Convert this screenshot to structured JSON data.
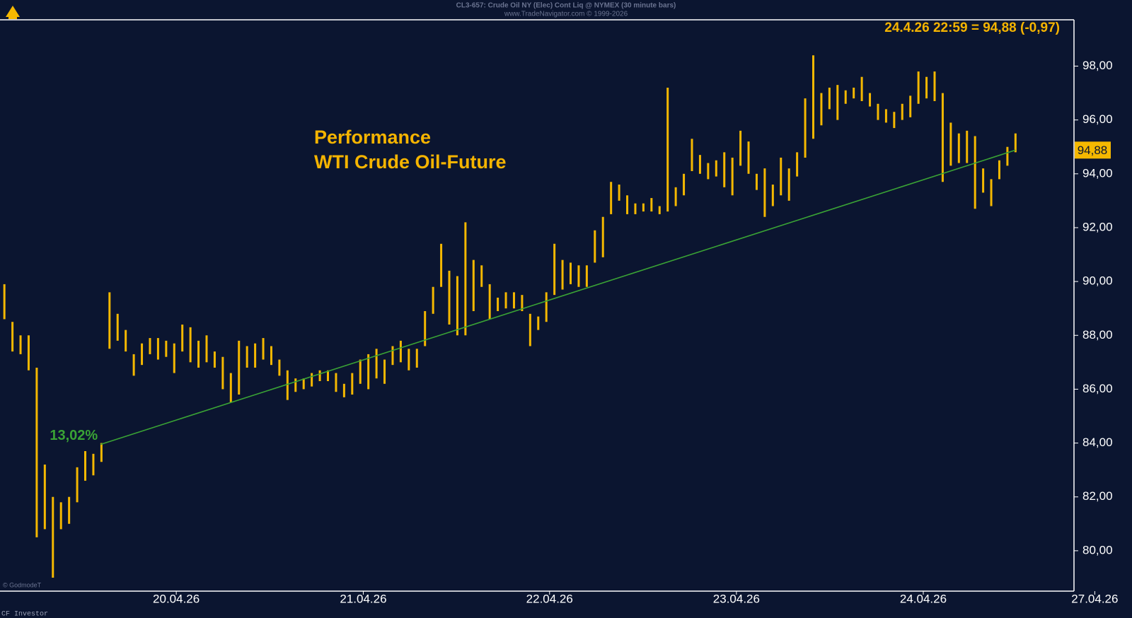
{
  "chart_data": {
    "type": "ohlc",
    "header": "CL3-657:  Crude Oil NY (Elec) Cont Liq @ NYMEX  (30 minute bars)",
    "subheader": "www.TradeNavigator.com © 1999-2026",
    "title": "Performance",
    "subtitle": "WTI Crude Oil-Future",
    "quote": "24.4.26 22:59 = 94,88 (-0,97)",
    "last_price": {
      "value": 94.88,
      "label": "94,88"
    },
    "credit": "© GodmodeT",
    "source": "CF Investor",
    "color": "#f5b800",
    "x": [
      0,
      1,
      2,
      3,
      4,
      5,
      6,
      7,
      8,
      9,
      10,
      11,
      12,
      13,
      14,
      15,
      16,
      17,
      18,
      19,
      20,
      21,
      22,
      23,
      24,
      25,
      26,
      27,
      28,
      29,
      30,
      31,
      32,
      33,
      34,
      35,
      36,
      37,
      38,
      39,
      40,
      41,
      42,
      43,
      44,
      45,
      46,
      47,
      48,
      49,
      50,
      51,
      52,
      53,
      54,
      55,
      56,
      57,
      58,
      59,
      60,
      61,
      62,
      63,
      64,
      65,
      66,
      67,
      68,
      69,
      70,
      71,
      72,
      73,
      74,
      75,
      76,
      77,
      78,
      79,
      80,
      81,
      82,
      83,
      84,
      85,
      86,
      87,
      88,
      89,
      90,
      91,
      92,
      93,
      94,
      95,
      96,
      97,
      98,
      99,
      100,
      101,
      102,
      103,
      104,
      105,
      106,
      107,
      108,
      109,
      110,
      111,
      112,
      113,
      114,
      115,
      116,
      117,
      118,
      119,
      120,
      121,
      122,
      123,
      124,
      125
    ],
    "high": [
      89.9,
      88.5,
      88.0,
      88.0,
      86.8,
      83.2,
      82.0,
      81.8,
      82.0,
      83.1,
      83.7,
      83.6,
      84.0,
      89.6,
      88.8,
      88.2,
      87.3,
      87.7,
      87.9,
      87.9,
      87.8,
      87.7,
      88.4,
      88.3,
      87.8,
      88.0,
      87.4,
      87.2,
      86.6,
      87.8,
      87.6,
      87.7,
      87.9,
      87.6,
      87.1,
      86.7,
      86.4,
      86.4,
      86.6,
      86.7,
      86.7,
      86.6,
      86.2,
      86.6,
      87.1,
      87.3,
      87.5,
      87.1,
      87.6,
      87.8,
      87.5,
      87.5,
      88.9,
      89.8,
      91.4,
      90.4,
      90.2,
      92.2,
      90.8,
      90.6,
      89.9,
      89.4,
      89.6,
      89.6,
      89.5,
      88.8,
      88.7,
      89.6,
      91.4,
      90.8,
      90.7,
      90.6,
      90.6,
      91.9,
      92.4,
      93.7,
      93.6,
      93.2,
      92.9,
      92.9,
      93.1,
      92.8,
      97.2,
      93.5,
      94.0,
      95.3,
      94.7,
      94.4,
      94.5,
      94.8,
      94.6,
      95.6,
      95.2,
      94.0,
      94.2,
      93.6,
      94.6,
      94.2,
      94.8,
      96.8,
      98.4,
      97.0,
      97.2,
      97.3,
      97.1,
      97.2,
      97.6,
      97.0,
      96.6,
      96.4,
      96.3,
      96.6,
      96.9,
      97.8,
      97.6,
      97.8,
      97.0,
      95.9,
      95.5,
      95.6,
      95.4,
      94.2,
      93.8,
      94.5,
      95.0,
      95.5
    ],
    "low": [
      88.6,
      87.4,
      87.3,
      86.7,
      80.5,
      80.8,
      79.0,
      80.8,
      81.0,
      81.8,
      82.6,
      82.8,
      83.3,
      87.5,
      87.8,
      87.4,
      86.5,
      86.9,
      87.3,
      87.1,
      87.2,
      86.6,
      87.4,
      87.0,
      86.8,
      87.0,
      86.8,
      86.0,
      85.5,
      85.8,
      86.8,
      86.8,
      87.1,
      86.9,
      86.5,
      85.6,
      85.9,
      86.0,
      86.1,
      86.3,
      86.3,
      85.9,
      85.7,
      85.8,
      86.2,
      86.0,
      86.4,
      86.2,
      86.9,
      87.0,
      86.7,
      86.8,
      87.6,
      88.8,
      89.8,
      88.4,
      88.0,
      88.0,
      88.9,
      89.8,
      88.6,
      88.9,
      89.0,
      89.0,
      88.9,
      87.6,
      88.2,
      88.5,
      89.5,
      89.7,
      89.9,
      89.8,
      89.8,
      90.7,
      90.9,
      92.5,
      93.0,
      92.5,
      92.5,
      92.6,
      92.6,
      92.5,
      92.6,
      92.8,
      93.2,
      94.1,
      94.0,
      93.8,
      93.9,
      93.5,
      93.2,
      94.3,
      94.0,
      93.4,
      92.4,
      92.8,
      93.2,
      93.0,
      93.9,
      94.6,
      95.3,
      95.8,
      96.4,
      96.0,
      96.6,
      96.8,
      96.7,
      96.5,
      96.0,
      95.9,
      95.7,
      96.0,
      96.1,
      96.6,
      96.8,
      96.7,
      93.7,
      94.3,
      94.4,
      94.4,
      92.7,
      93.3,
      92.8,
      93.8,
      94.3,
      94.8
    ],
    "trend_line": {
      "x": [
        11.9,
        125
      ],
      "values": [
        83.95,
        94.88
      ],
      "label": "13,02%",
      "color": "#3aa335"
    },
    "xlim": [
      -0.54,
      132.23
    ],
    "xticks": [
      {
        "value": 21.25,
        "label": "20.04.26"
      },
      {
        "value": 44.37,
        "label": "21.04.26"
      },
      {
        "value": 67.4,
        "label": "22.04.26"
      },
      {
        "value": 90.5,
        "label": "23.04.26"
      },
      {
        "value": 113.6,
        "label": "24.04.26"
      },
      {
        "value": 134.8,
        "label": "27.04.26"
      }
    ],
    "ylim": [
      78.5,
      99.72
    ],
    "yticks": [
      {
        "value": 80,
        "label": "80,00"
      },
      {
        "value": 82,
        "label": "82,00"
      },
      {
        "value": 84,
        "label": "84,00"
      },
      {
        "value": 86,
        "label": "86,00"
      },
      {
        "value": 88,
        "label": "88,00"
      },
      {
        "value": 90,
        "label": "90,00"
      },
      {
        "value": 92,
        "label": "92,00"
      },
      {
        "value": 94,
        "label": "94,00"
      },
      {
        "value": 96,
        "label": "96,00"
      },
      {
        "value": 98,
        "label": "98,00"
      }
    ]
  }
}
